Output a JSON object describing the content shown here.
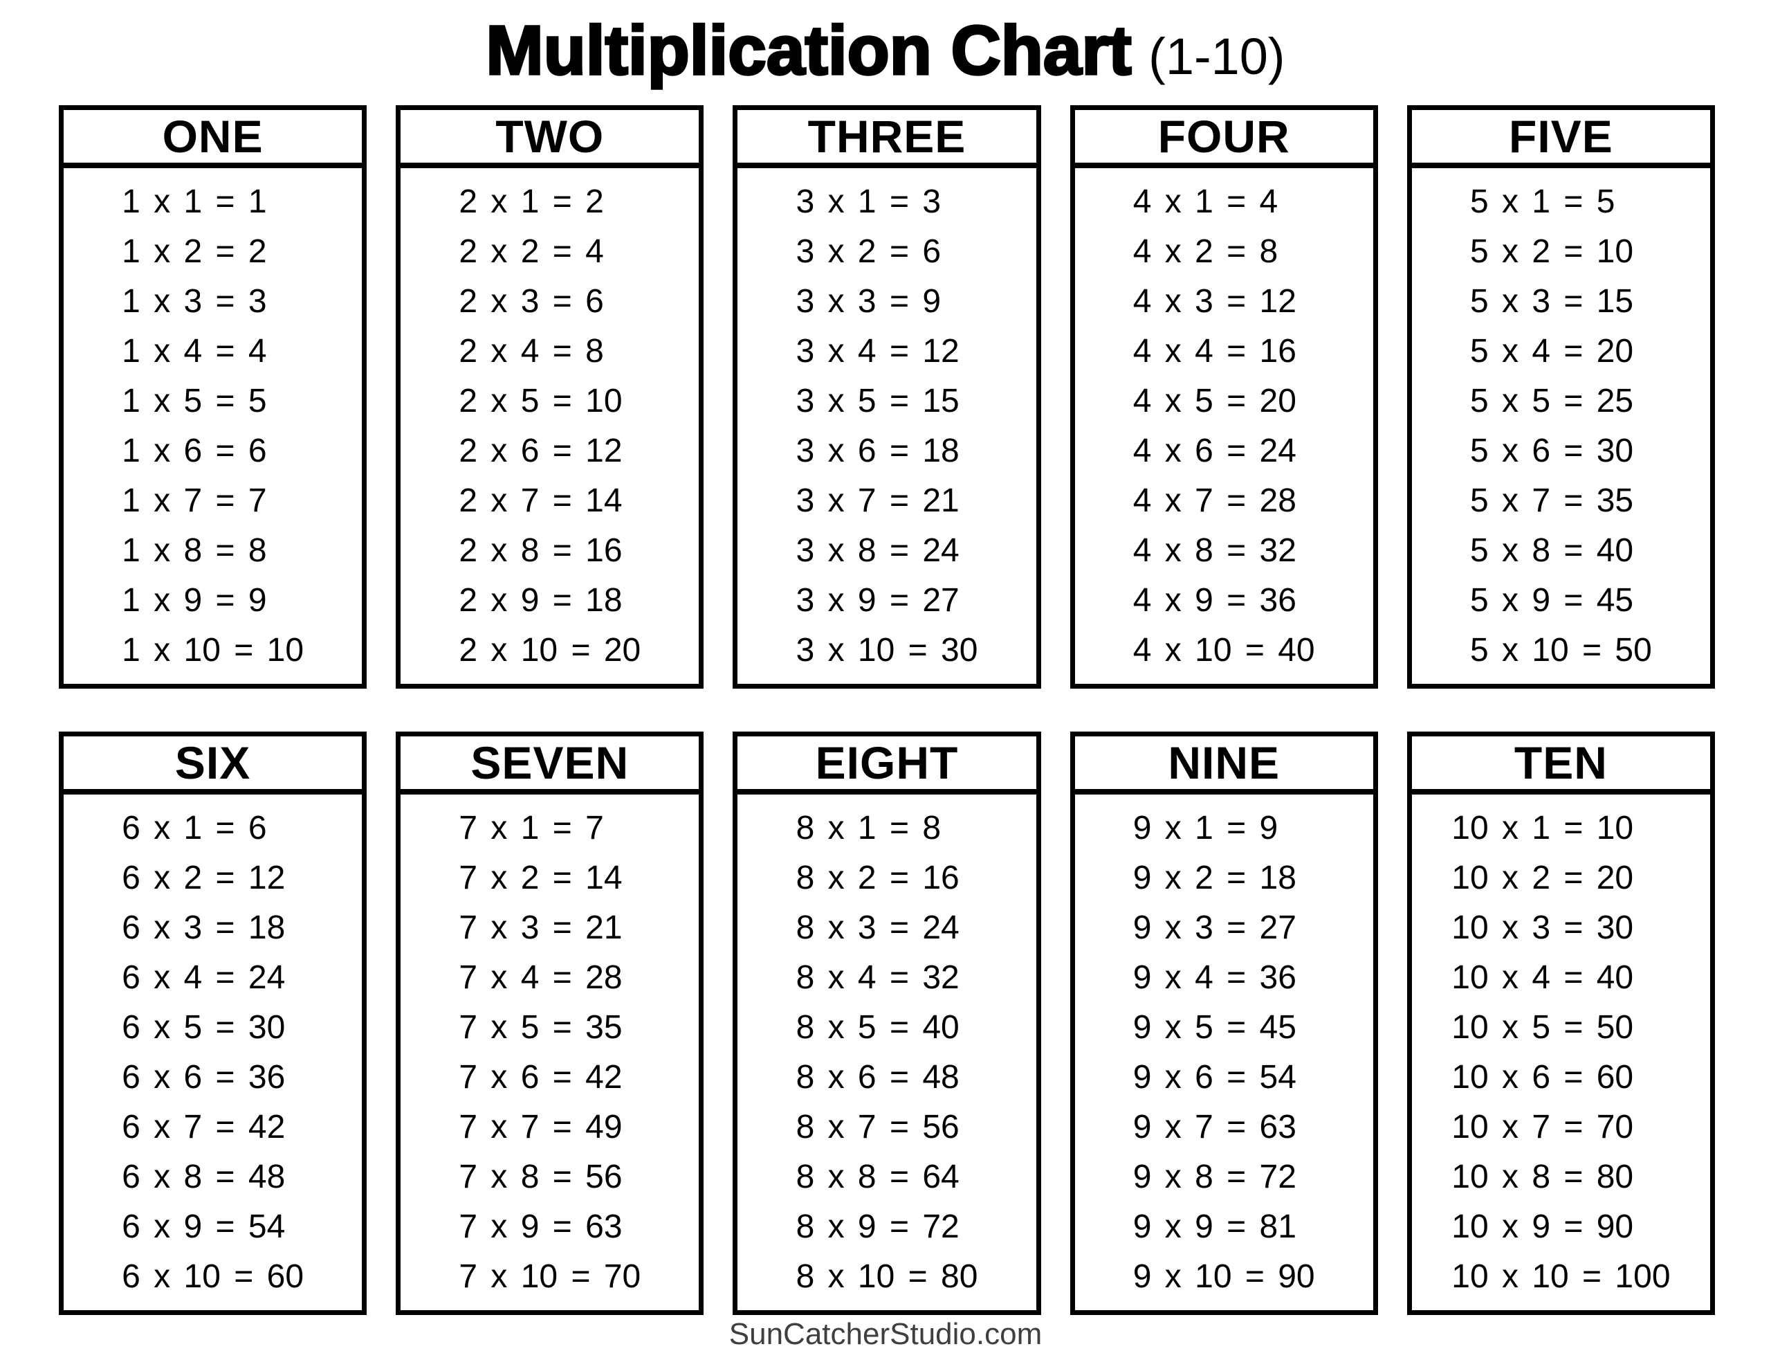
{
  "title": {
    "main": "Multiplication Chart",
    "suffix": "(1-10)"
  },
  "footer": {
    "text": "SunCatcherStudio.com"
  },
  "colors": {
    "background": "#ffffff",
    "text": "#000000",
    "border": "#000000",
    "footer_text": "#3f3f3f"
  },
  "cards": [
    {
      "name": "ONE",
      "facts": [
        "1 x 1 = 1",
        "1 x 2 = 2",
        "1 x 3 = 3",
        "1 x 4 = 4",
        "1 x 5 = 5",
        "1 x 6 = 6",
        "1 x 7 = 7",
        "1 x 8 = 8",
        "1 x 9 = 9",
        "1 x 10 = 10"
      ]
    },
    {
      "name": "TWO",
      "facts": [
        "2 x 1 = 2",
        "2 x 2 = 4",
        "2 x 3 = 6",
        "2 x 4 = 8",
        "2 x 5 = 10",
        "2 x 6 = 12",
        "2 x 7 = 14",
        "2 x 8 = 16",
        "2 x 9 = 18",
        "2 x 10 = 20"
      ]
    },
    {
      "name": "THREE",
      "facts": [
        "3 x 1 = 3",
        "3 x 2 = 6",
        "3 x 3 = 9",
        "3 x 4 = 12",
        "3 x 5 = 15",
        "3 x 6 = 18",
        "3 x 7 = 21",
        "3 x 8 = 24",
        "3 x 9 = 27",
        "3 x 10 = 30"
      ]
    },
    {
      "name": "FOUR",
      "facts": [
        "4 x 1 = 4",
        "4 x 2 = 8",
        "4 x 3 = 12",
        "4 x 4 = 16",
        "4 x 5 = 20",
        "4 x 6 = 24",
        "4 x 7 = 28",
        "4 x 8 = 32",
        "4 x 9 = 36",
        "4 x 10 = 40"
      ]
    },
    {
      "name": "FIVE",
      "facts": [
        "5 x 1 = 5",
        "5 x 2 = 10",
        "5 x 3 = 15",
        "5 x 4 = 20",
        "5 x 5 = 25",
        "5 x 6 = 30",
        "5 x 7 = 35",
        "5 x 8 = 40",
        "5 x 9 = 45",
        "5 x 10 = 50"
      ]
    },
    {
      "name": "SIX",
      "facts": [
        "6 x 1 = 6",
        "6 x 2 = 12",
        "6 x 3 = 18",
        "6 x 4 = 24",
        "6 x 5 = 30",
        "6 x 6 = 36",
        "6 x 7 = 42",
        "6 x 8 = 48",
        "6 x 9 = 54",
        "6 x 10 = 60"
      ]
    },
    {
      "name": "SEVEN",
      "facts": [
        "7 x 1 = 7",
        "7 x 2 = 14",
        "7 x 3 = 21",
        "7 x 4 = 28",
        "7 x 5 = 35",
        "7 x 6 = 42",
        "7 x 7 = 49",
        "7 x 8 = 56",
        "7 x 9 = 63",
        "7 x 10 = 70"
      ]
    },
    {
      "name": "EIGHT",
      "facts": [
        "8 x 1 = 8",
        "8 x 2 = 16",
        "8 x 3 = 24",
        "8 x 4 = 32",
        "8 x 5 = 40",
        "8 x 6 = 48",
        "8 x 7 = 56",
        "8 x 8 = 64",
        "8 x 9 = 72",
        "8 x 10 = 80"
      ]
    },
    {
      "name": "NINE",
      "facts": [
        "9 x 1 = 9",
        "9 x 2 = 18",
        "9 x 3 = 27",
        "9 x 4 = 36",
        "9 x 5 = 45",
        "9 x 6 = 54",
        "9 x 7 = 63",
        "9 x 8 = 72",
        "9 x 9 = 81",
        "9 x 10 = 90"
      ]
    },
    {
      "name": "TEN",
      "facts": [
        "10 x 1 = 10",
        "10 x 2 = 20",
        "10 x 3 = 30",
        "10 x 4 = 40",
        "10 x 5 = 50",
        "10 x 6 = 60",
        "10 x 7 = 70",
        "10 x 8 = 80",
        "10 x 9 = 90",
        "10 x 10 = 100"
      ]
    }
  ]
}
